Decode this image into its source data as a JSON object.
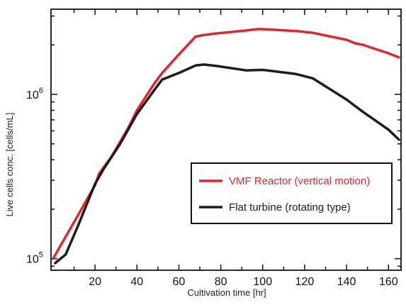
{
  "chart_data": {
    "type": "line",
    "title": "",
    "xlabel": "Cultivation time [hr]",
    "ylabel": "Live cells conc. [cells/mL]",
    "xlim": [
      -1,
      166
    ],
    "ylim": [
      85000,
      3300000
    ],
    "yscale": "log",
    "xticks": [
      20,
      40,
      60,
      80,
      100,
      120,
      140,
      160
    ],
    "xtick_labels": [
      "20",
      "40",
      "60",
      "80",
      "100",
      "120",
      "140",
      "160"
    ],
    "yticks": [
      100000,
      1000000
    ],
    "ytick_labels": [
      {
        "base": "10",
        "exp": "5"
      },
      {
        "base": "10",
        "exp": "6"
      }
    ],
    "grid": false,
    "legend_position": "center-right",
    "series": [
      {
        "name": "VMF Reactor (vertical motion)",
        "color": "#e3262c",
        "x": [
          0,
          4,
          12,
          20,
          22,
          28,
          36,
          40,
          48,
          52,
          60,
          68,
          72,
          78,
          92,
          98,
          104,
          116,
          124,
          140,
          144,
          148,
          160,
          165
        ],
        "y": [
          100000,
          123000,
          185000,
          280000,
          330000,
          420000,
          630000,
          800000,
          1150000,
          1350000,
          1750000,
          2250000,
          2300000,
          2350000,
          2450000,
          2500000,
          2480000,
          2430000,
          2370000,
          2150000,
          2050000,
          2000000,
          1780000,
          1680000
        ]
      },
      {
        "name": "Flat turbine (rotating type)",
        "color": "#1c1c1c",
        "x": [
          1,
          6,
          12,
          20,
          24,
          32,
          40,
          48,
          52,
          60,
          68,
          72,
          78,
          92,
          100,
          116,
          124,
          140,
          148,
          160,
          165
        ],
        "y": [
          94000,
          106000,
          160000,
          285000,
          350000,
          500000,
          760000,
          1050000,
          1230000,
          1350000,
          1500000,
          1520000,
          1490000,
          1400000,
          1410000,
          1330000,
          1250000,
          930000,
          780000,
          610000,
          530000
        ]
      }
    ]
  }
}
